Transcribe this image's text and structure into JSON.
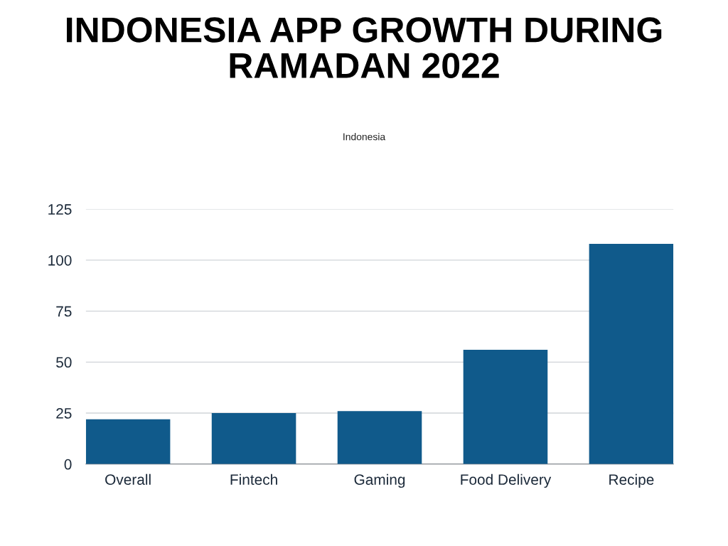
{
  "chart_data": {
    "type": "bar",
    "title": "INDONESIA APP GROWTH DURING RAMADAN 2022",
    "subtitle": "Indonesia",
    "categories": [
      "Overall",
      "Fintech",
      "Gaming",
      "Food Delivery",
      "Recipe"
    ],
    "values": [
      22,
      25,
      26,
      56,
      108
    ],
    "color": "#105a8b",
    "ylim": [
      0,
      125
    ],
    "yticks": [
      0,
      25,
      50,
      75,
      100,
      125
    ],
    "grid": "y"
  }
}
